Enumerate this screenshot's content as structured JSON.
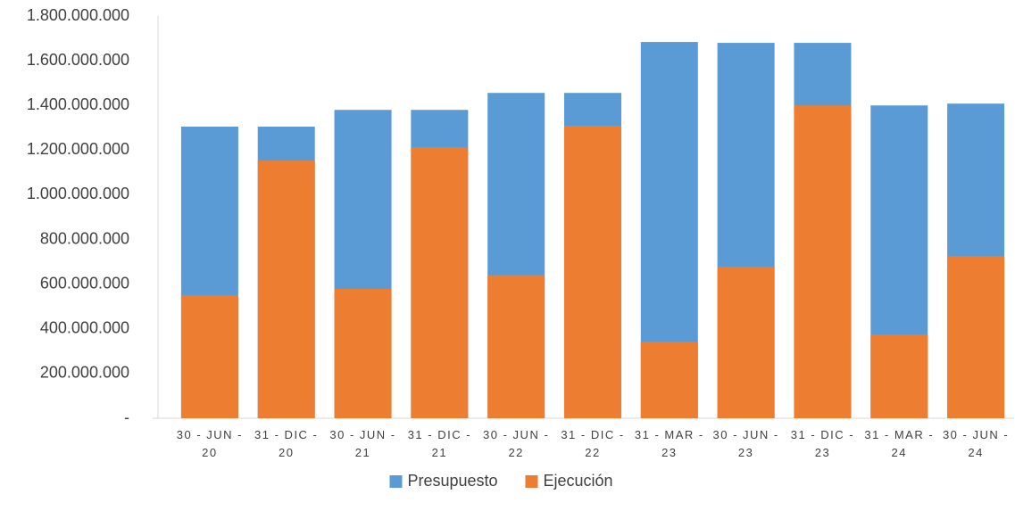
{
  "chart_data": {
    "type": "bar",
    "categories": [
      "30 - JUN - 20",
      "31 - DIC - 20",
      "30 - JUN - 21",
      "31 - DIC - 21",
      "30 - JUN - 22",
      "31 - DIC - 22",
      "31 - MAR - 23",
      "30 - JUN - 23",
      "31 - DIC - 23",
      "31 - MAR - 24",
      "30 - JUN - 24"
    ],
    "series": [
      {
        "name": "Presupuesto",
        "color": "#5b9bd5",
        "values": [
          1305000000,
          1305000000,
          1380000000,
          1380000000,
          1456000000,
          1456000000,
          1684000000,
          1680000000,
          1680000000,
          1400000000,
          1408000000
        ]
      },
      {
        "name": "Ejecución",
        "color": "#ed7d31",
        "values": [
          551000000,
          1153000000,
          579000000,
          1213000000,
          640000000,
          1309000000,
          343000000,
          678000000,
          1400000000,
          375000000,
          726000000
        ]
      }
    ],
    "ylim": [
      0,
      1800000000
    ],
    "yticks": [
      {
        "value": 0,
        "label": "-"
      },
      {
        "value": 200000000,
        "label": "200.000.000"
      },
      {
        "value": 400000000,
        "label": "400.000.000"
      },
      {
        "value": 600000000,
        "label": "600.000.000"
      },
      {
        "value": 800000000,
        "label": "800.000.000"
      },
      {
        "value": 1000000000,
        "label": "1.000.000.000"
      },
      {
        "value": 1200000000,
        "label": "1.200.000.000"
      },
      {
        "value": 1400000000,
        "label": "1.400.000.000"
      },
      {
        "value": 1600000000,
        "label": "1.600.000.000"
      },
      {
        "value": 1800000000,
        "label": "1.800.000.000"
      }
    ],
    "grid": false,
    "legend": "bottom"
  }
}
